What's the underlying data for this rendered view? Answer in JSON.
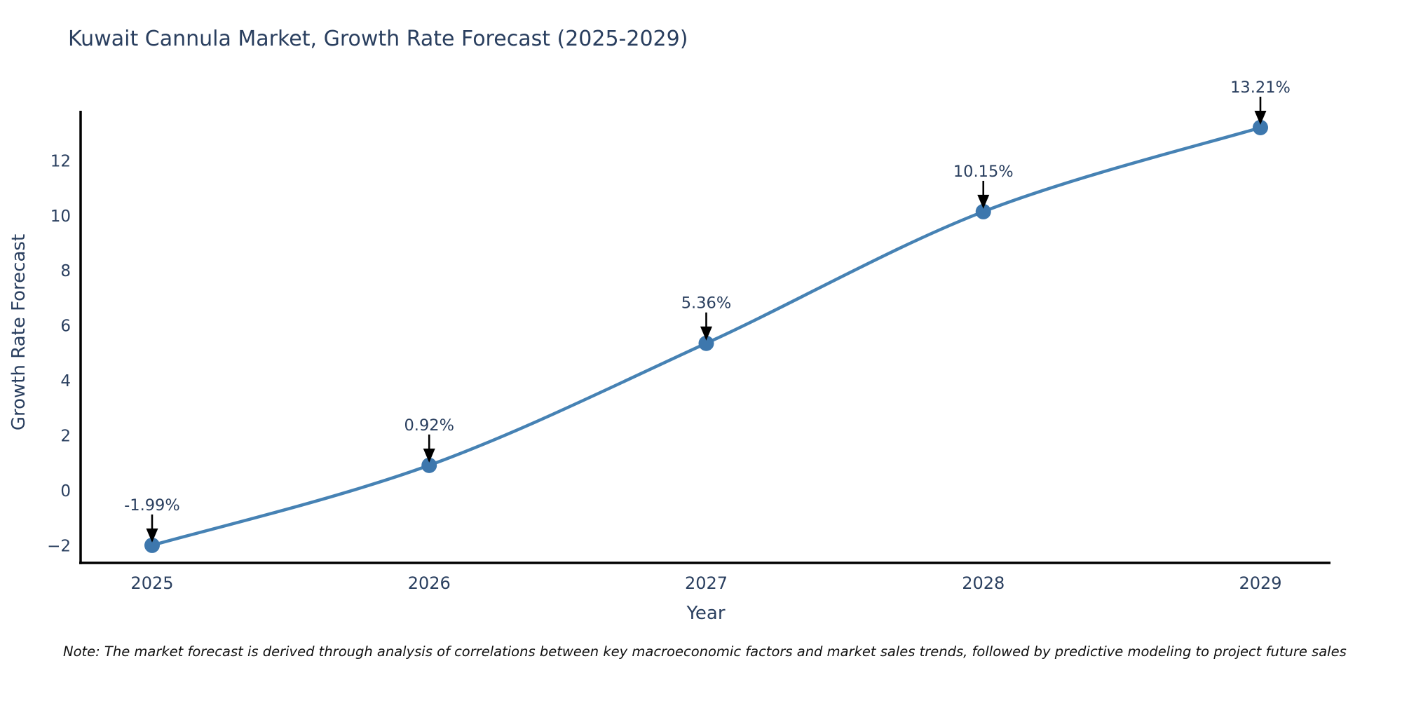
{
  "title": "Kuwait Cannula Market, Growth Rate Forecast (2025-2029)",
  "note": "Note: The market forecast is derived through analysis of correlations between key macroeconomic factors and market sales trends, followed by predictive modeling to project future sales",
  "chart_data": {
    "type": "line",
    "title": "Kuwait Cannula Market, Growth Rate Forecast (2025-2029)",
    "xlabel": "Year",
    "ylabel": "Growth Rate Forecast",
    "x": [
      2025,
      2026,
      2027,
      2028,
      2029
    ],
    "values": [
      -1.99,
      0.92,
      5.36,
      10.15,
      13.21
    ],
    "point_labels": [
      "-1.99%",
      "0.92%",
      "5.36%",
      "10.15%",
      "13.21%"
    ],
    "xticks": [
      2025,
      2026,
      2027,
      2028,
      2029
    ],
    "xtick_labels": [
      "2025",
      "2026",
      "2027",
      "2028",
      "2029"
    ],
    "yticks": [
      -2,
      0,
      2,
      4,
      6,
      8,
      10,
      12
    ],
    "xlim": [
      2024.742,
      2029.253
    ],
    "ylim": [
      -2.63,
      13.77
    ],
    "grid": false,
    "legend_position": "none",
    "line_smooth": true,
    "marker_radius": 11,
    "line_width": 4.5,
    "colors": {
      "line": "#4682b4",
      "marker": "#3d77ad",
      "axis": "#000000",
      "tick_text": "#2a3f5f",
      "annotation_text": "#2a3f5f",
      "annotation_arrow": "#000000",
      "title_text": "#2a3f5f",
      "background": "#ffffff"
    }
  }
}
